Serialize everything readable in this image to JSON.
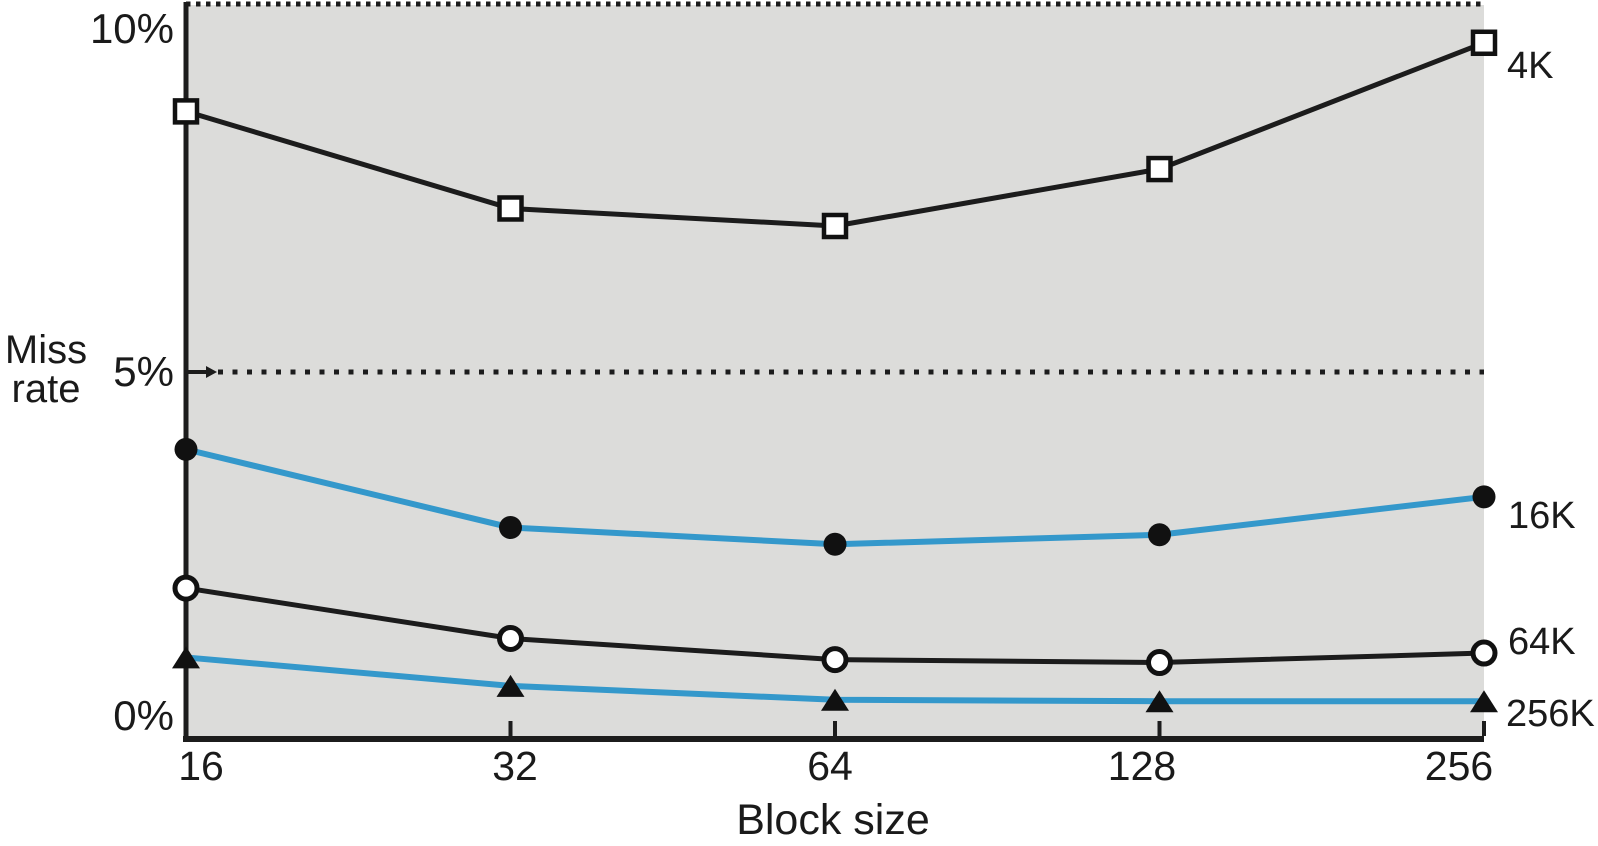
{
  "chart_data": {
    "type": "line",
    "title": "",
    "xlabel": "Block size",
    "ylabel": "Miss rate",
    "ylabel_lines": [
      "Miss",
      "rate"
    ],
    "x": [
      16,
      32,
      64,
      128,
      256
    ],
    "x_tick_labels": [
      "16",
      "32",
      "64",
      "128",
      "256"
    ],
    "x_scale": "categorical-evenly-spaced",
    "ylim": [
      0,
      10
    ],
    "y_unit": "%",
    "y_tick_labels": [
      "10%",
      "5%",
      "0%"
    ],
    "y_tick_values": [
      10,
      5,
      0
    ],
    "grid": "dotted horizontal lines at 5% and 10%",
    "legend_position": "labels at right ends of lines",
    "series": [
      {
        "name": "4K",
        "marker": "open-square",
        "line_color": "#1c1c1c",
        "values": [
          8.57,
          7.24,
          7.0,
          7.78,
          9.51
        ]
      },
      {
        "name": "16K",
        "marker": "filled-circle",
        "line_color": "#3498cb",
        "values": [
          3.94,
          2.87,
          2.64,
          2.77,
          3.29
        ]
      },
      {
        "name": "64K",
        "marker": "open-circle",
        "line_color": "#1c1c1c",
        "values": [
          2.04,
          1.35,
          1.06,
          1.02,
          1.15
        ]
      },
      {
        "name": "256K",
        "marker": "filled-triangle",
        "line_color": "#3498cb",
        "values": [
          1.09,
          0.7,
          0.51,
          0.49,
          0.49
        ]
      }
    ],
    "colors": {
      "plot_background": "#dcdcda",
      "page_background": "#ffffff",
      "black_line": "#1c1c1c",
      "blue_line": "#3498cb",
      "marker_ink": "#111111",
      "marker_fill_open": "#ffffff"
    }
  }
}
